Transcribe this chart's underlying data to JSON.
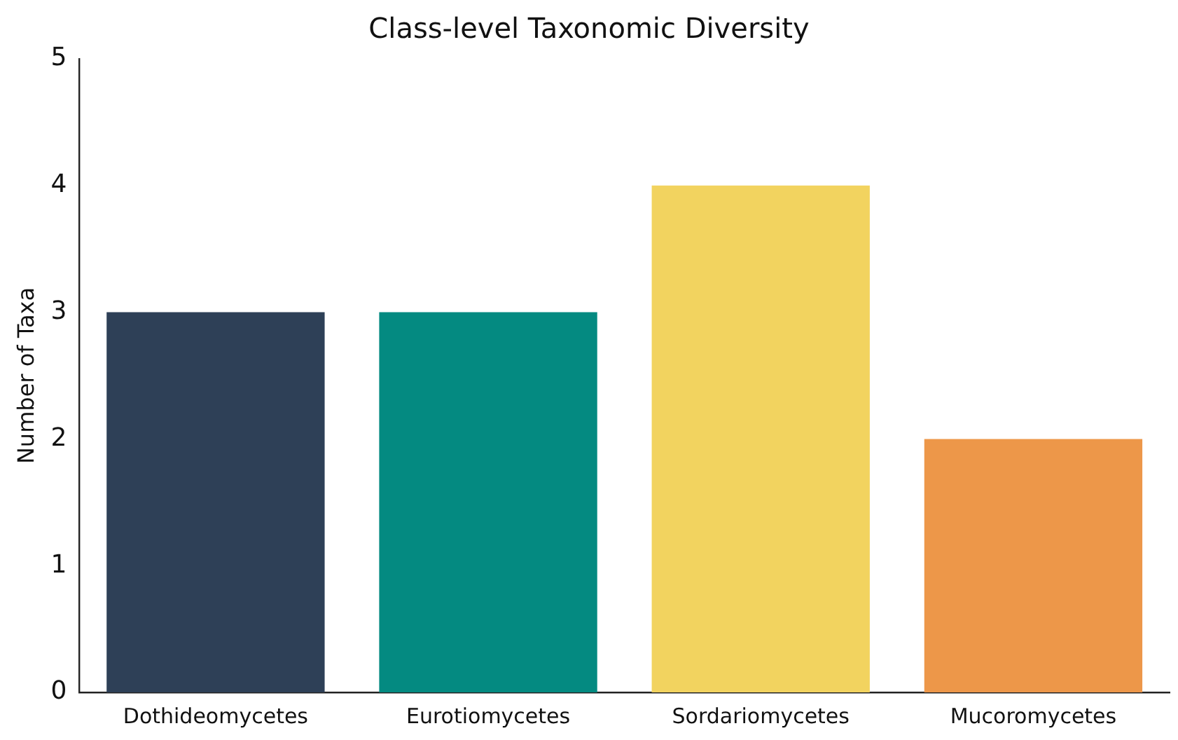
{
  "chart_data": {
    "type": "bar",
    "title": "Class-level Taxonomic Diversity",
    "ylabel": "Number of Taxa",
    "categories": [
      "Dothideomycetes",
      "Eurotiomycetes",
      "Sordariomycetes",
      "Mucoromycetes"
    ],
    "values": [
      3,
      3,
      4,
      2
    ],
    "colors": [
      "#2e4057",
      "#048a81",
      "#f2d35f",
      "#ed9749"
    ],
    "ylim": [
      0,
      5
    ],
    "yticks": [
      0,
      1,
      2,
      3,
      4,
      5
    ],
    "grid": false,
    "legend": false
  }
}
